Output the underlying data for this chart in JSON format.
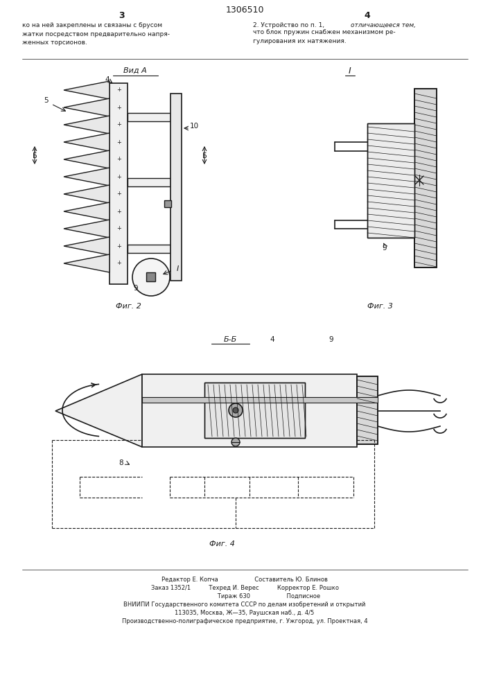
{
  "page_width": 7.07,
  "page_height": 10.0,
  "bg_color": "#ffffff",
  "line_color": "#1a1a1a",
  "text_color": "#1a1a1a",
  "patent_number": "1306510",
  "page_left": "3",
  "page_right": "4",
  "top_text_left": "ко на ней закреплены и связаны с брусом\nжатки посредством предварительно напря-\nженных торсионов.",
  "top_text_right": "2. Устройство по п. 1,\nчто блок пружин снабжен механизмом ре-\nгулирования их натяжения.",
  "top_text_right_italic": "отличающееся тем,",
  "fig2_label": "Фиг. 2",
  "fig3_label": "Фиг. 3",
  "fig4_label": "Фиг. 4",
  "vid_a_label": "Вид А",
  "section_I_label": "I",
  "section_B_label": "Б-Б",
  "footer_line1": "Редактор Е. Копча                    Составитель Ю. Блинов",
  "footer_line2": "Заказ 1352/1          Техред И. Верес          Корректор Е. Рошко",
  "footer_line3": "                           Тираж 630                    Подписное",
  "footer_line4": "ВНИИПИ Государственного комитета СССР по делам изобретений и открытий",
  "footer_line5": "113035, Москва, Ж—35, Раушская наб., д. 4/5",
  "footer_line6": "Производственно-полиграфическое предприятие, г. Ужгород, ул. Проектная, 4"
}
